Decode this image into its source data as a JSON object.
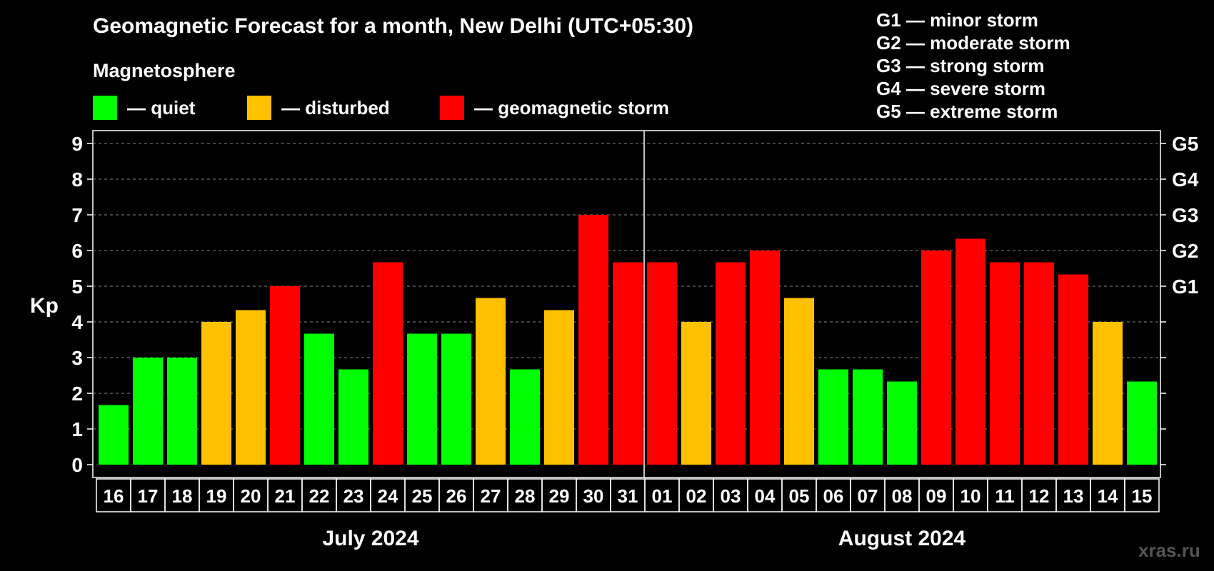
{
  "chart_data": {
    "type": "bar",
    "title": "Geomagnetic Forecast for a month, New Delhi (UTC+05:30)",
    "subtitle": "Magnetosphere",
    "ylabel": "Kp",
    "ylim": [
      0,
      9
    ],
    "yticks": [
      "0",
      "1",
      "2",
      "3",
      "4",
      "5",
      "6",
      "7",
      "8",
      "9"
    ],
    "right_ticks": [
      {
        "value": 5,
        "label": "G1"
      },
      {
        "value": 6,
        "label": "G2"
      },
      {
        "value": 7,
        "label": "G3"
      },
      {
        "value": 8,
        "label": "G4"
      },
      {
        "value": 9,
        "label": "G5"
      }
    ],
    "grid": true,
    "categories": [
      "16",
      "17",
      "18",
      "19",
      "20",
      "21",
      "22",
      "23",
      "24",
      "25",
      "26",
      "27",
      "28",
      "29",
      "30",
      "31",
      "01",
      "02",
      "03",
      "04",
      "05",
      "06",
      "07",
      "08",
      "09",
      "10",
      "11",
      "12",
      "13",
      "14",
      "15"
    ],
    "values": [
      1.67,
      3,
      3,
      4,
      4.33,
      5,
      3.67,
      2.67,
      5.67,
      3.67,
      3.67,
      4.67,
      2.67,
      4.33,
      7,
      5.67,
      5.67,
      4,
      5.67,
      6,
      4.67,
      2.67,
      2.67,
      2.33,
      6,
      6.33,
      5.67,
      5.67,
      5.33,
      4,
      2.33
    ],
    "levels": [
      "quiet",
      "quiet",
      "quiet",
      "disturbed",
      "disturbed",
      "storm",
      "quiet",
      "quiet",
      "storm",
      "quiet",
      "quiet",
      "disturbed",
      "quiet",
      "disturbed",
      "storm",
      "storm",
      "storm",
      "disturbed",
      "storm",
      "storm",
      "disturbed",
      "quiet",
      "quiet",
      "quiet",
      "storm",
      "storm",
      "storm",
      "storm",
      "storm",
      "disturbed",
      "quiet"
    ],
    "months": [
      {
        "label": "July 2024",
        "start": 0,
        "count": 16
      },
      {
        "label": "August 2024",
        "start": 16,
        "count": 15
      }
    ],
    "colors": {
      "quiet": "#00ff00",
      "disturbed": "#ffc000",
      "storm": "#ff0000"
    }
  },
  "legend": {
    "quiet": "— quiet",
    "disturbed": "— disturbed",
    "storm": "— geomagnetic storm"
  },
  "g_legend": [
    "G1 — minor storm",
    "G2 — moderate storm",
    "G3 — strong storm",
    "G4 — severe storm",
    "G5 — extreme storm"
  ],
  "watermark": "xras.ru"
}
